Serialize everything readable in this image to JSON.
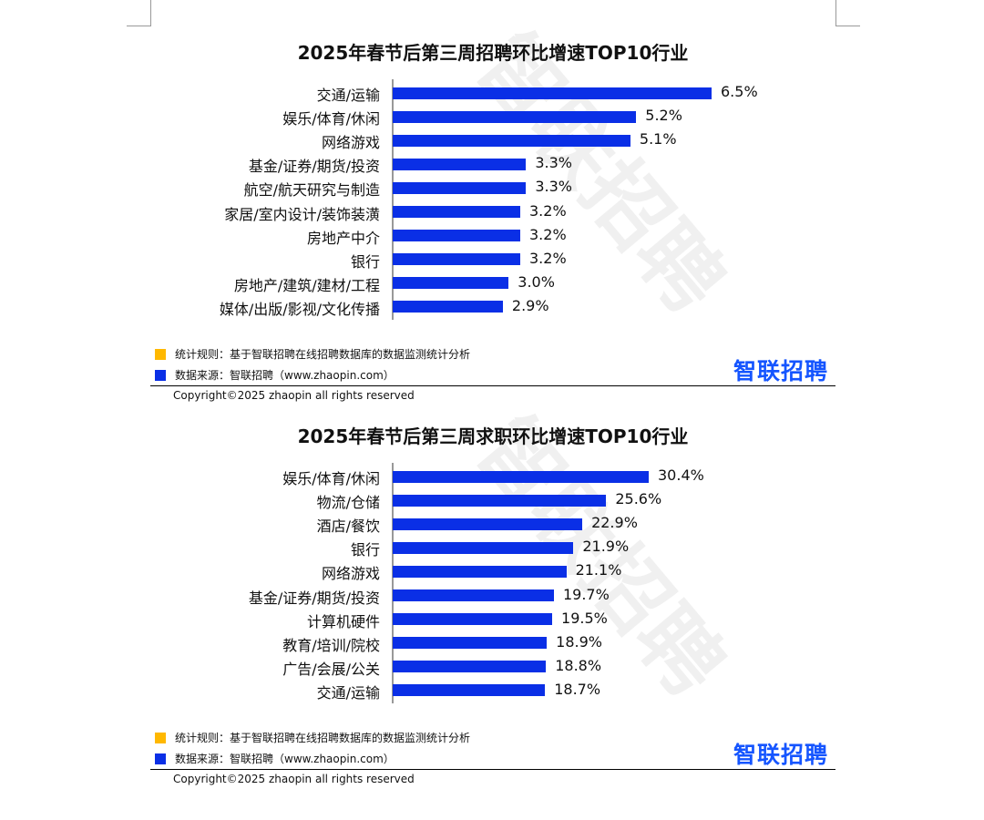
{
  "brand": {
    "logo": "智联招聘",
    "watermark": "智联招聘",
    "bar_color": "#0a2fe6",
    "legend_colors": [
      "#ffb800",
      "#0a2fe6"
    ]
  },
  "chart_data": [
    {
      "type": "bar",
      "orientation": "horizontal",
      "title": "2025年春节后第三周招聘环比增速TOP10行业",
      "categories": [
        "交通/运输",
        "娱乐/体育/休闲",
        "网络游戏",
        "基金/证券/期货/投资",
        "航空/航天研究与制造",
        "家居/室内设计/装饰装潢",
        "房地产中介",
        "银行",
        "房地产/建筑/建材/工程",
        "媒体/出版/影视/文化传播"
      ],
      "values": [
        6.5,
        5.2,
        5.1,
        3.3,
        3.3,
        3.2,
        3.2,
        3.2,
        3.0,
        2.9
      ],
      "labels": [
        "6.5%",
        "5.2%",
        "5.1%",
        "3.3%",
        "3.3%",
        "3.2%",
        "3.2%",
        "3.2%",
        "3.0%",
        "2.9%"
      ],
      "xlim": [
        1,
        7
      ],
      "legend": [
        "统计规则：基于智联招聘在线招聘数据库的数据监测统计分析",
        "数据来源：智联招聘（www.zhaopin.com）"
      ],
      "copyright": "Copyright©2025 zhaopin all rights reserved"
    },
    {
      "type": "bar",
      "orientation": "horizontal",
      "title": "2025年春节后第三周求职环比增速TOP10行业",
      "categories": [
        "娱乐/体育/休闲",
        "物流/仓储",
        "酒店/餐饮",
        "银行",
        "网络游戏",
        "基金/证券/期货/投资",
        "计算机硬件",
        "教育/培训/院校",
        "广告/会展/公关",
        "交通/运输"
      ],
      "values": [
        30.4,
        25.6,
        22.9,
        21.9,
        21.1,
        19.7,
        19.5,
        18.9,
        18.8,
        18.7
      ],
      "labels": [
        "30.4%",
        "25.6%",
        "22.9%",
        "21.9%",
        "21.1%",
        "19.7%",
        "19.5%",
        "18.9%",
        "18.8%",
        "18.7%"
      ],
      "xlim": [
        1.5,
        33
      ],
      "legend": [
        "统计规则：基于智联招聘在线招聘数据库的数据监测统计分析",
        "数据来源：智联招聘（www.zhaopin.com）"
      ],
      "copyright": "Copyright©2025 zhaopin all rights reserved"
    }
  ]
}
